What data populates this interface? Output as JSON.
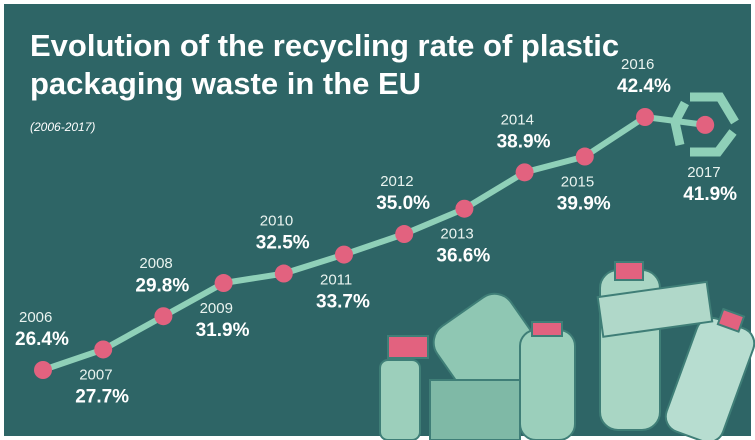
{
  "chart_data": {
    "type": "line",
    "title": "Evolution of the recycling rate of plastic packaging waste in the EU",
    "subtitle": "(2006-2017)",
    "categories": [
      "2006",
      "2007",
      "2008",
      "2009",
      "2010",
      "2011",
      "2012",
      "2013",
      "2014",
      "2015",
      "2016",
      "2017"
    ],
    "series": [
      {
        "name": "Recycling rate",
        "color": "#8fd0b8",
        "marker_color": "#e2627f",
        "values": [
          26.4,
          27.7,
          29.8,
          31.9,
          32.5,
          33.7,
          35.0,
          36.6,
          38.9,
          39.9,
          42.4,
          41.9
        ],
        "value_labels": [
          "26.4%",
          "27.7%",
          "29.8%",
          "31.9%",
          "32.5%",
          "33.7%",
          "35.0%",
          "36.6%",
          "38.9%",
          "39.9%",
          "42.4%",
          "41.9%"
        ]
      }
    ]
  }
}
